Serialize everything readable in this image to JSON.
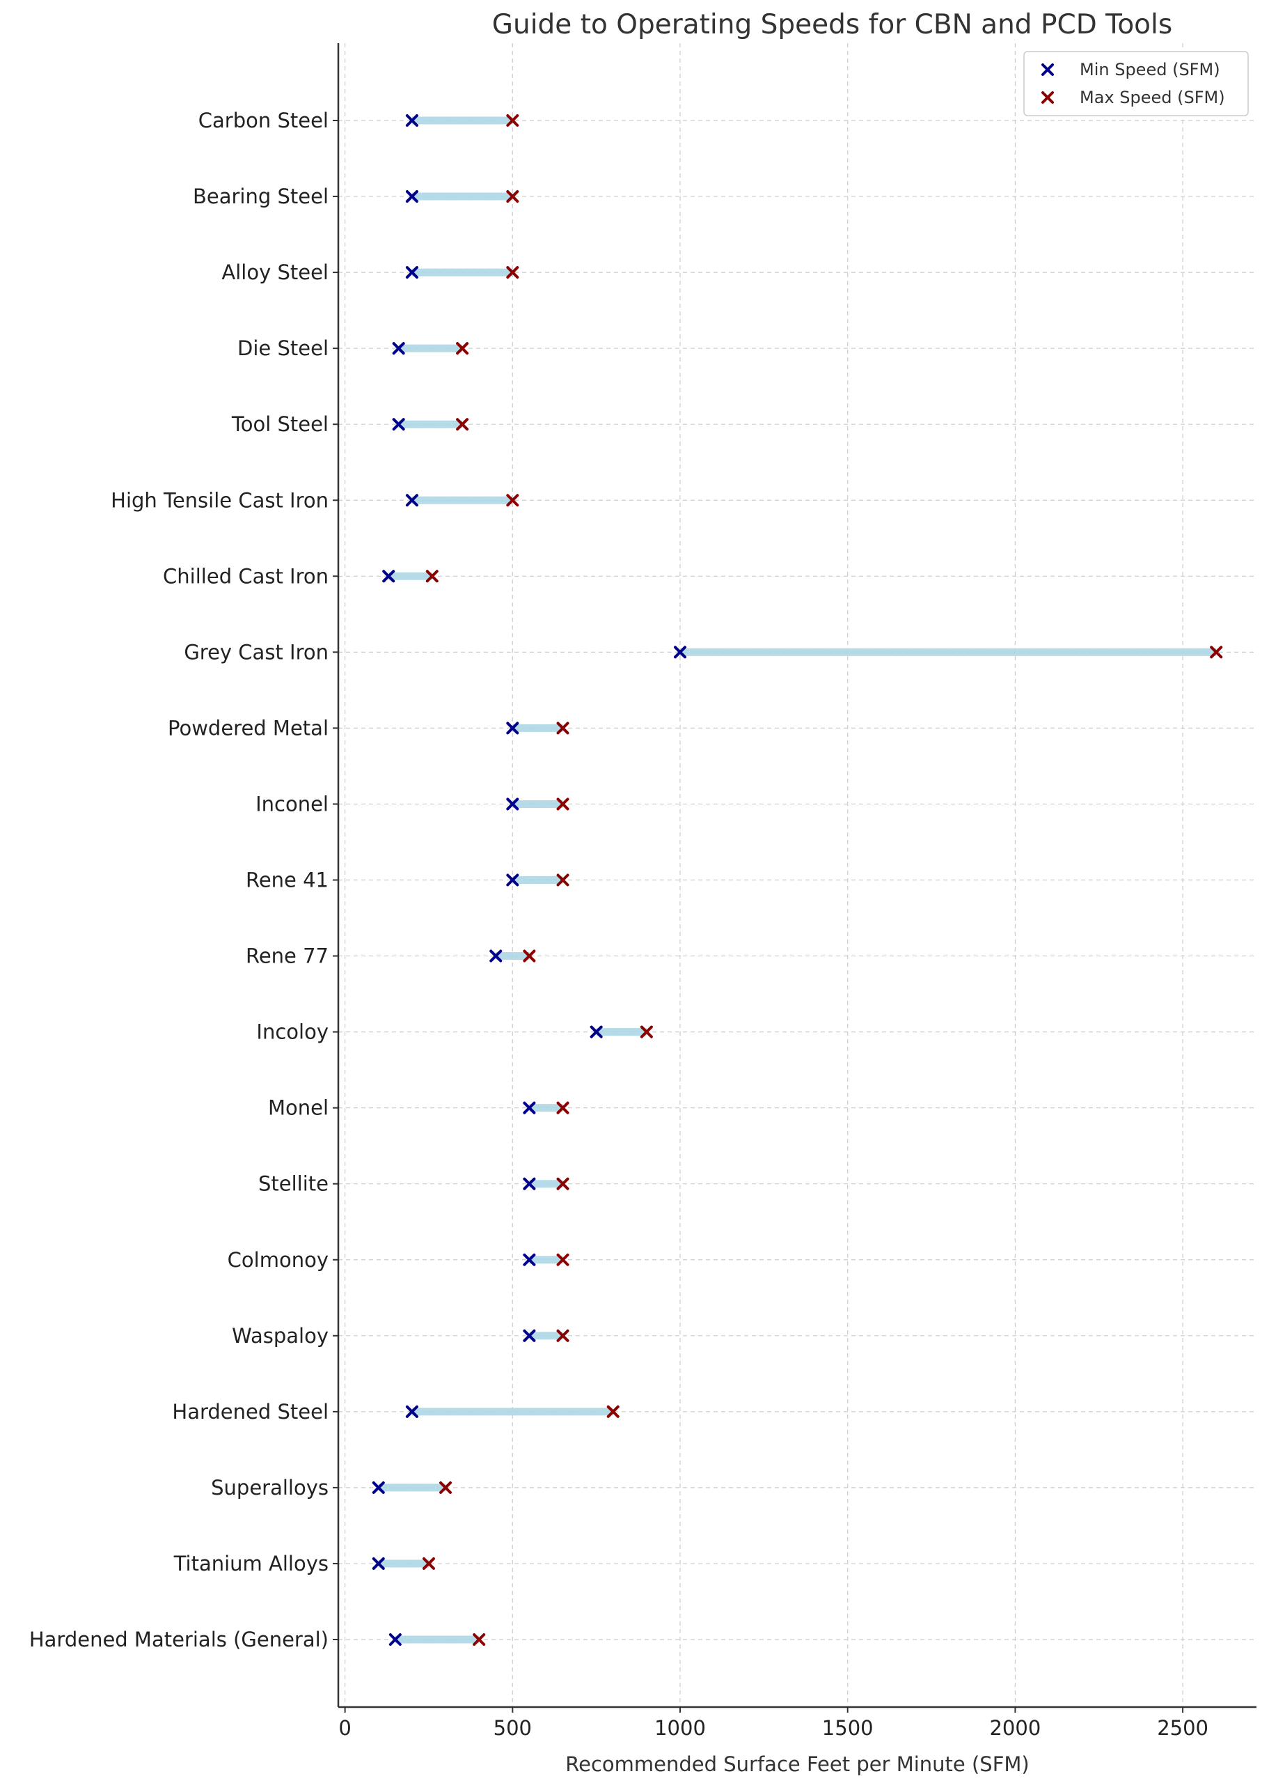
{
  "chart_data": {
    "type": "range",
    "title": "Guide to Operating Speeds for CBN and PCD Tools",
    "xlabel": "Recommended Surface Feet per Minute (SFM)",
    "ylabel": "",
    "xlim": [
      -20,
      2720
    ],
    "xticks": [
      0,
      500,
      1000,
      1500,
      2000,
      2500
    ],
    "grid": true,
    "legend_position": "top-right",
    "colors": {
      "min": "#00008b",
      "max": "#8b0000",
      "bar": "#add8e6"
    },
    "categories": [
      "Carbon Steel",
      "Bearing Steel",
      "Alloy Steel",
      "Die Steel",
      "Tool Steel",
      "High Tensile Cast Iron",
      "Chilled Cast Iron",
      "Grey Cast Iron",
      "Powdered Metal",
      "Inconel",
      "Rene 41",
      "Rene 77",
      "Incoloy",
      "Monel",
      "Stellite",
      "Colmonoy",
      "Waspaloy",
      "Hardened Steel",
      "Superalloys",
      "Titanium Alloys",
      "Hardened Materials (General)"
    ],
    "series": [
      {
        "name": "Min Speed (SFM)",
        "values": [
          200,
          200,
          200,
          160,
          160,
          200,
          130,
          1000,
          500,
          500,
          500,
          450,
          750,
          550,
          550,
          550,
          550,
          200,
          100,
          100,
          150
        ]
      },
      {
        "name": "Max Speed (SFM)",
        "values": [
          500,
          500,
          500,
          350,
          350,
          500,
          260,
          2600,
          650,
          650,
          650,
          550,
          900,
          650,
          650,
          650,
          650,
          800,
          300,
          250,
          400
        ]
      }
    ]
  }
}
